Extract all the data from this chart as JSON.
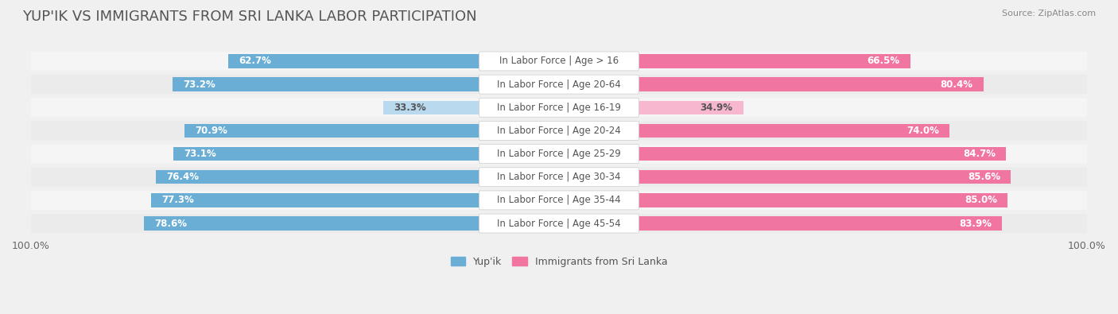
{
  "title": "YUP'IK VS IMMIGRANTS FROM SRI LANKA LABOR PARTICIPATION",
  "source": "Source: ZipAtlas.com",
  "categories": [
    "In Labor Force | Age > 16",
    "In Labor Force | Age 20-64",
    "In Labor Force | Age 16-19",
    "In Labor Force | Age 20-24",
    "In Labor Force | Age 25-29",
    "In Labor Force | Age 30-34",
    "In Labor Force | Age 35-44",
    "In Labor Force | Age 45-54"
  ],
  "yupik_values": [
    62.7,
    73.2,
    33.3,
    70.9,
    73.1,
    76.4,
    77.3,
    78.6
  ],
  "srilanka_values": [
    66.5,
    80.4,
    34.9,
    74.0,
    84.7,
    85.6,
    85.0,
    83.9
  ],
  "yupik_color": "#6aaed6",
  "srilanka_color": "#f075a0",
  "yupik_light_color": "#b8d9ee",
  "srilanka_light_color": "#f7b8cf",
  "background_color": "#f0f0f0",
  "row_bg_even": "#f5f5f5",
  "row_bg_odd": "#ebebeb",
  "label_bg_color": "#ffffff",
  "max_value": 100.0,
  "bar_height": 0.6,
  "title_fontsize": 13,
  "label_fontsize": 8.5,
  "value_fontsize": 8.5,
  "legend_fontsize": 9
}
